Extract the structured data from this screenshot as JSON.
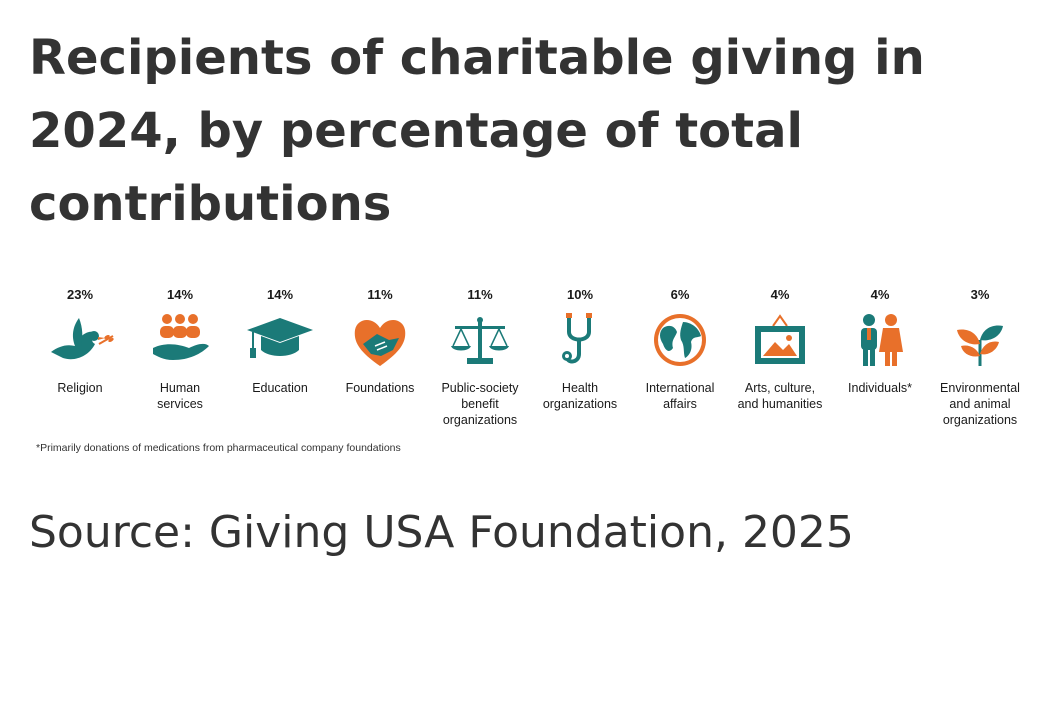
{
  "title": "Recipients of charitable giving in 2024, by percentage of total contributions",
  "footnote": "*Primarily donations of medications from pharmaceutical company foundations",
  "source": "Source: Giving USA Foundation, 2025",
  "colors": {
    "teal": "#1b7a78",
    "orange": "#e8702a",
    "text": "#333333"
  },
  "chart_data": {
    "type": "bar",
    "categories": [
      "Religion",
      "Human services",
      "Education",
      "Foundations",
      "Public-society benefit organizations",
      "Health organizations",
      "International affairs",
      "Arts, culture, and humanities",
      "Individuals*",
      "Environmental and animal organizations"
    ],
    "values": [
      23,
      14,
      14,
      11,
      11,
      10,
      6,
      4,
      4,
      3
    ],
    "unit": "%",
    "title": "Recipients of charitable giving in 2024, by percentage of total contributions"
  },
  "items": [
    {
      "pct": "23%",
      "label": "Religion",
      "icon": "dove-icon"
    },
    {
      "pct": "14%",
      "label": "Human\nservices",
      "icon": "people-hand-icon"
    },
    {
      "pct": "14%",
      "label": "Education",
      "icon": "graduation-cap-icon"
    },
    {
      "pct": "11%",
      "label": "Foundations",
      "icon": "heart-handshake-icon"
    },
    {
      "pct": "11%",
      "label": "Public-society\nbenefit\norganizations",
      "icon": "scales-icon"
    },
    {
      "pct": "10%",
      "label": "Health\norganizations",
      "icon": "stethoscope-icon"
    },
    {
      "pct": "6%",
      "label": "International\naffairs",
      "icon": "globe-icon"
    },
    {
      "pct": "4%",
      "label": "Arts, culture,\nand humanities",
      "icon": "picture-frame-icon"
    },
    {
      "pct": "4%",
      "label": "Individuals*",
      "icon": "two-people-icon"
    },
    {
      "pct": "3%",
      "label": "Environmental\nand animal\norganizations",
      "icon": "leaves-icon"
    }
  ]
}
